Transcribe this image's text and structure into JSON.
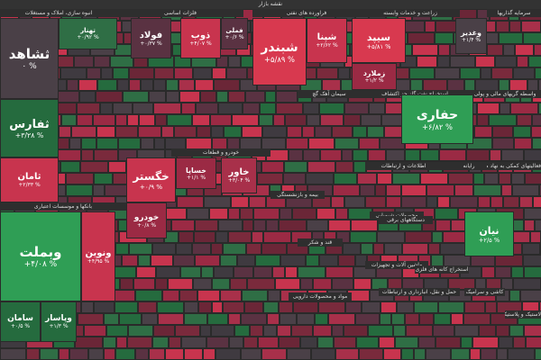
{
  "title": "نقشه بازار",
  "sectors": [
    "انبوه سازی، املاک و مستغلات",
    "فلزات اساسی",
    "فراورده های نفتی",
    "زراعت و خدمات وابسته",
    "سرمایه گذاریها",
    "خودرو و قطعات",
    "بانکها و موسسات اعتباری",
    "استخراج نفت گاز جز اکتشاف",
    "واسطه گریهای مالی و پولی",
    "سیمان آهک گچ",
    "بیمه و بازنشستگی",
    "رایانه",
    "اطلاعات و ارتباطات",
    "فعالیتهای کمکی به نهاد مالی",
    "مواد و محصولات دارویی",
    "قند و شکر",
    "محصولات شیمیایی",
    "دستگاههای برقی",
    "ماشین آلات و تجهیزات",
    "استخراج کانه های فلزی",
    "حمل و نقل، انبارداری و ارتباطات",
    "کاشی و سرامیک",
    "لاستیک و پلاستیک"
  ],
  "tiles": [
    {
      "name": "ثشاهد",
      "change": "۰ %"
    },
    {
      "name": "تهنار",
      "change": "+۰/۹۲ %"
    },
    {
      "name": "ثفارس",
      "change": "+۳/۲۸ %"
    },
    {
      "name": "ثامان",
      "change": "+۲/۳۳ %"
    },
    {
      "name": "وبملت",
      "change": "+۴/۰۸ %"
    },
    {
      "name": "ونوین",
      "change": "+۴/۹۵ %"
    },
    {
      "name": "سامان",
      "change": "+۰/۵ %"
    },
    {
      "name": "وپاسار",
      "change": "+۱/۳ %"
    },
    {
      "name": "فولاد",
      "change": "+۰/۳۷ %"
    },
    {
      "name": "ذوب",
      "change": "+۴/۰۷ %"
    },
    {
      "name": "فملی",
      "change": "+۰/۶ %"
    },
    {
      "name": "خگستر",
      "change": "+۰/۹ %"
    },
    {
      "name": "خساپا",
      "change": "+۱/۱ %"
    },
    {
      "name": "خاور",
      "change": "+۳/۰۴ %"
    },
    {
      "name": "خودرو",
      "change": "+۰/۸ %"
    },
    {
      "name": "شبندر",
      "change": "+۵/۸۹ %"
    },
    {
      "name": "شپنا",
      "change": "+۲/۶۲ %"
    },
    {
      "name": "سیپد",
      "change": "+۵/۸۱ %"
    },
    {
      "name": "زملارد",
      "change": "+۱/۲ %"
    },
    {
      "name": "حفاری",
      "change": "+۶/۸۲ %"
    },
    {
      "name": "نیان",
      "change": "+۲/۵ %"
    },
    {
      "name": "وغدیر",
      "change": "+۱/۴ %"
    }
  ]
}
